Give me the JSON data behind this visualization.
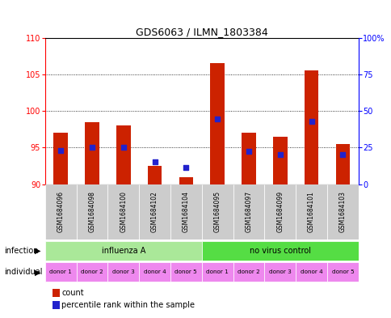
{
  "title": "GDS6063 / ILMN_1803384",
  "samples": [
    "GSM1684096",
    "GSM1684098",
    "GSM1684100",
    "GSM1684102",
    "GSM1684104",
    "GSM1684095",
    "GSM1684097",
    "GSM1684099",
    "GSM1684101",
    "GSM1684103"
  ],
  "counts": [
    97.0,
    98.5,
    98.0,
    92.5,
    91.0,
    106.5,
    97.0,
    96.5,
    105.5,
    95.5
  ],
  "percentiles": [
    23.0,
    25.0,
    25.0,
    15.0,
    11.5,
    44.5,
    22.5,
    20.0,
    43.0,
    20.0
  ],
  "ymin": 90,
  "ymax": 110,
  "y_ticks": [
    90,
    95,
    100,
    105,
    110
  ],
  "y2min": 0,
  "y2max": 100,
  "y2_ticks": [
    0,
    25,
    50,
    75,
    100
  ],
  "y2_labels": [
    "0",
    "25",
    "50",
    "75",
    "100%"
  ],
  "bar_color": "#cc2200",
  "dot_color": "#2222cc",
  "infection_groups": [
    {
      "label": "influenza A",
      "start": 0,
      "end": 5,
      "color": "#aae899"
    },
    {
      "label": "no virus control",
      "start": 5,
      "end": 10,
      "color": "#55dd44"
    }
  ],
  "individual_labels": [
    "donor 1",
    "donor 2",
    "donor 3",
    "donor 4",
    "donor 5",
    "donor 1",
    "donor 2",
    "donor 3",
    "donor 4",
    "donor 5"
  ],
  "individual_color": "#ee88ee",
  "sample_bg_color": "#cccccc",
  "infection_row_label": "infection",
  "individual_row_label": "individual",
  "legend_count_label": "count",
  "legend_percentile_label": "percentile rank within the sample",
  "bar_width": 0.45,
  "dot_size": 18
}
